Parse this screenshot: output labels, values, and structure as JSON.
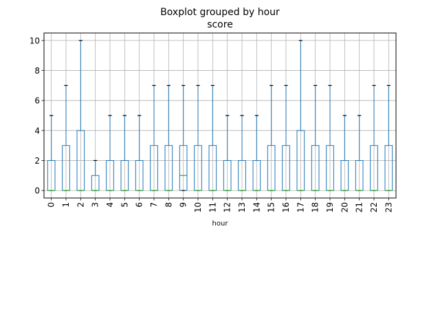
{
  "chart_data": {
    "type": "boxplot",
    "suptitle": "Boxplot grouped by hour",
    "title": "score",
    "xlabel": "hour",
    "ylabel": "",
    "ylim": [
      -0.5,
      10.5
    ],
    "yticks": [
      0,
      2,
      4,
      6,
      8,
      10
    ],
    "grid": true,
    "categories": [
      "0",
      "1",
      "2",
      "3",
      "4",
      "5",
      "6",
      "7",
      "8",
      "9",
      "10",
      "11",
      "12",
      "13",
      "14",
      "15",
      "16",
      "17",
      "18",
      "19",
      "20",
      "21",
      "22",
      "23"
    ],
    "boxes": [
      {
        "min": 0,
        "q1": 0,
        "median": 0,
        "q3": 2,
        "max": 5
      },
      {
        "min": 0,
        "q1": 0,
        "median": 0,
        "q3": 3,
        "max": 7
      },
      {
        "min": 0,
        "q1": 0,
        "median": 0,
        "q3": 4,
        "max": 10
      },
      {
        "min": 0,
        "q1": 0,
        "median": 0,
        "q3": 1,
        "max": 2
      },
      {
        "min": 0,
        "q1": 0,
        "median": 0,
        "q3": 2,
        "max": 5
      },
      {
        "min": 0,
        "q1": 0,
        "median": 0,
        "q3": 2,
        "max": 5
      },
      {
        "min": 0,
        "q1": 0,
        "median": 0,
        "q3": 2,
        "max": 5
      },
      {
        "min": 0,
        "q1": 0,
        "median": 0,
        "q3": 3,
        "max": 7
      },
      {
        "min": 0,
        "q1": 0,
        "median": 0,
        "q3": 3,
        "max": 7
      },
      {
        "min": 0,
        "q1": 0,
        "median": 1,
        "q3": 3,
        "max": 7
      },
      {
        "min": 0,
        "q1": 0,
        "median": 0,
        "q3": 3,
        "max": 7
      },
      {
        "min": 0,
        "q1": 0,
        "median": 0,
        "q3": 3,
        "max": 7
      },
      {
        "min": 0,
        "q1": 0,
        "median": 0,
        "q3": 2,
        "max": 5
      },
      {
        "min": 0,
        "q1": 0,
        "median": 0,
        "q3": 2,
        "max": 5
      },
      {
        "min": 0,
        "q1": 0,
        "median": 0,
        "q3": 2,
        "max": 5
      },
      {
        "min": 0,
        "q1": 0,
        "median": 0,
        "q3": 3,
        "max": 7
      },
      {
        "min": 0,
        "q1": 0,
        "median": 0,
        "q3": 3,
        "max": 7
      },
      {
        "min": 0,
        "q1": 0,
        "median": 0,
        "q3": 4,
        "max": 10
      },
      {
        "min": 0,
        "q1": 0,
        "median": 0,
        "q3": 3,
        "max": 7
      },
      {
        "min": 0,
        "q1": 0,
        "median": 0,
        "q3": 3,
        "max": 7
      },
      {
        "min": 0,
        "q1": 0,
        "median": 0,
        "q3": 2,
        "max": 5
      },
      {
        "min": 0,
        "q1": 0,
        "median": 0,
        "q3": 2,
        "max": 5
      },
      {
        "min": 0,
        "q1": 0,
        "median": 0,
        "q3": 3,
        "max": 7
      },
      {
        "min": 0,
        "q1": 0,
        "median": 0,
        "q3": 3,
        "max": 7
      }
    ],
    "colors": {
      "box": "#1f77b4",
      "median": "#2ca02c",
      "cap": "#000000",
      "grid": "#b0b0b0",
      "axis": "#000000"
    }
  }
}
